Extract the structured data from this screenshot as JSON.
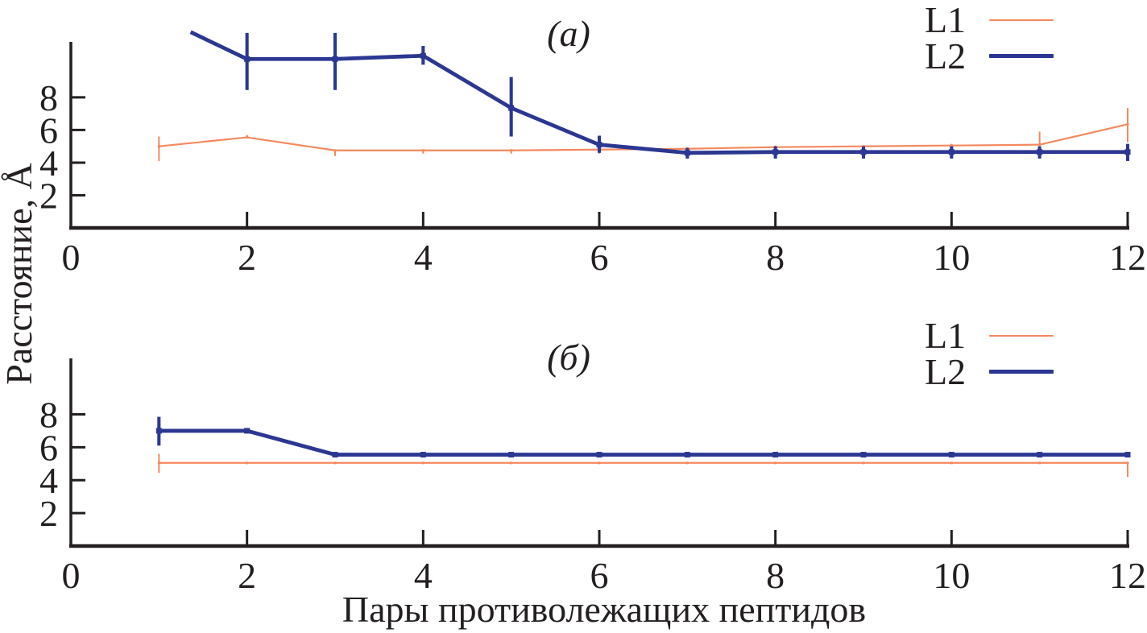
{
  "figure": {
    "background": "#ffffff",
    "text_color": "#231f20",
    "ylabel": "Расстояние, Å",
    "xlabel": "Пары противолежащих пептидов"
  },
  "chart_data": [
    {
      "type": "line",
      "panel_label": "(а)",
      "xlim": [
        0,
        12
      ],
      "ylim": [
        0,
        11.4
      ],
      "x_ticks": [
        0,
        2,
        4,
        6,
        8,
        10,
        12
      ],
      "y_ticks": [
        2,
        4,
        6,
        8
      ],
      "grid": false,
      "legend_position": "top-right",
      "series": [
        {
          "name": "L1",
          "color": "#f4895f",
          "line_width": 2.2,
          "marker_size": 3,
          "x": [
            1,
            2,
            3,
            4,
            5,
            6,
            7,
            8,
            9,
            10,
            11,
            12
          ],
          "y": [
            5.0,
            5.55,
            4.75,
            4.75,
            4.75,
            4.8,
            4.85,
            4.95,
            5.0,
            5.05,
            5.1,
            6.35
          ],
          "err_up": [
            0.6,
            0.15,
            0.05,
            0.05,
            0.05,
            0.05,
            0.1,
            0.1,
            0.05,
            0.1,
            0.8,
            1.0
          ],
          "err_dn": [
            0.9,
            0.05,
            0.35,
            0.2,
            0.2,
            0.25,
            0.1,
            0.05,
            0.05,
            0.05,
            0.8,
            1.1
          ]
        },
        {
          "name": "L2",
          "color": "#2c3792",
          "line_width": 4.8,
          "marker_size": 7,
          "x": [
            1.36,
            2,
            3,
            4,
            5,
            6,
            7,
            8,
            9,
            10,
            11,
            12
          ],
          "y": [
            12.0,
            10.35,
            10.35,
            10.55,
            7.35,
            5.1,
            4.6,
            4.65,
            4.65,
            4.65,
            4.65,
            4.65
          ],
          "err_up": [
            0,
            1.6,
            1.6,
            0.6,
            1.9,
            0.55,
            0.3,
            0.35,
            0.35,
            0.35,
            0.35,
            0.5
          ],
          "err_dn": [
            0,
            1.9,
            1.9,
            0.55,
            1.75,
            0.5,
            0.35,
            0.4,
            0.4,
            0.4,
            0.4,
            0.55
          ]
        }
      ]
    },
    {
      "type": "line",
      "panel_label": "(б)",
      "xlim": [
        0,
        12
      ],
      "ylim": [
        0,
        11.4
      ],
      "x_ticks": [
        0,
        2,
        4,
        6,
        8,
        10,
        12
      ],
      "y_ticks": [
        2,
        4,
        6,
        8
      ],
      "grid": false,
      "legend_position": "top-right",
      "series": [
        {
          "name": "L1",
          "color": "#f4895f",
          "line_width": 2.2,
          "marker_size": 3,
          "x": [
            1,
            2,
            3,
            4,
            5,
            6,
            7,
            8,
            9,
            10,
            11,
            12
          ],
          "y": [
            5.05,
            5.05,
            5.05,
            5.05,
            5.05,
            5.05,
            5.05,
            5.05,
            5.05,
            5.05,
            5.05,
            5.05
          ],
          "err_up": [
            0.55,
            0.05,
            0.05,
            0.05,
            0.05,
            0.05,
            0.05,
            0.05,
            0.05,
            0.05,
            0.05,
            0.05
          ],
          "err_dn": [
            0.6,
            0.07,
            0.07,
            0.07,
            0.07,
            0.07,
            0.07,
            0.07,
            0.07,
            0.07,
            0.07,
            0.85
          ]
        },
        {
          "name": "L2",
          "color": "#2c3792",
          "line_width": 4.8,
          "marker_size": 7,
          "x": [
            1,
            2,
            3,
            4,
            5,
            6,
            7,
            8,
            9,
            10,
            11,
            12
          ],
          "y": [
            7.0,
            7.0,
            5.55,
            5.55,
            5.55,
            5.55,
            5.55,
            5.55,
            5.55,
            5.55,
            5.55,
            5.55
          ],
          "err_up": [
            0.85,
            0.12,
            0.1,
            0.08,
            0.08,
            0.08,
            0.08,
            0.08,
            0.08,
            0.08,
            0.08,
            0.12
          ],
          "err_dn": [
            0.9,
            0.1,
            0.1,
            0.08,
            0.08,
            0.08,
            0.08,
            0.08,
            0.08,
            0.08,
            0.08,
            0.12
          ]
        }
      ]
    }
  ]
}
